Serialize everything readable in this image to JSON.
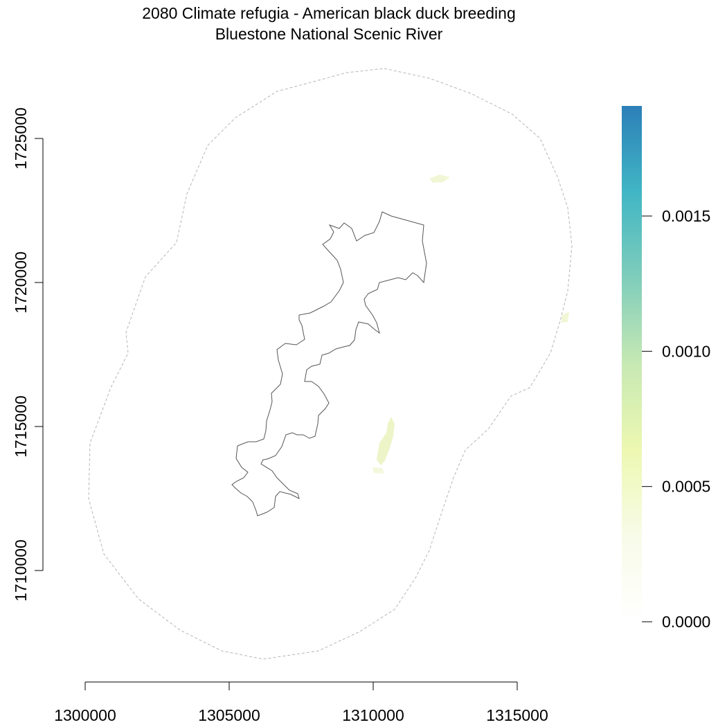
{
  "map": {
    "title_line1": "2080 Climate refugia - American black duck breeding",
    "title_line2": "Bluestone National Scenic River",
    "x_axis": {
      "ticks": [
        {
          "value": 1300000,
          "label": "1300000"
        },
        {
          "value": 1305000,
          "label": "1305000"
        },
        {
          "value": 1310000,
          "label": "1310000"
        },
        {
          "value": 1315000,
          "label": "1315000"
        }
      ]
    },
    "y_axis": {
      "ticks": [
        {
          "value": 1710000,
          "label": "1710000"
        },
        {
          "value": 1715000,
          "label": "1715000"
        },
        {
          "value": 1720000,
          "label": "1720000"
        },
        {
          "value": 1725000,
          "label": "1725000"
        }
      ]
    },
    "legend": {
      "min": 0.0,
      "max": 0.0019,
      "ticks": [
        {
          "value": 0.0,
          "label": "0.0000"
        },
        {
          "value": 0.0005,
          "label": "0.0005"
        },
        {
          "value": 0.001,
          "label": "0.0010"
        },
        {
          "value": 0.0015,
          "label": "0.0015"
        }
      ],
      "colors": [
        "#ffffff",
        "#f8fbe8",
        "#edf8b1",
        "#c7e9b4",
        "#7fcdbb",
        "#41b6c4",
        "#2c7fb8"
      ]
    },
    "boundary_color": "#555555",
    "buffer_color": "#b5b5b5"
  }
}
